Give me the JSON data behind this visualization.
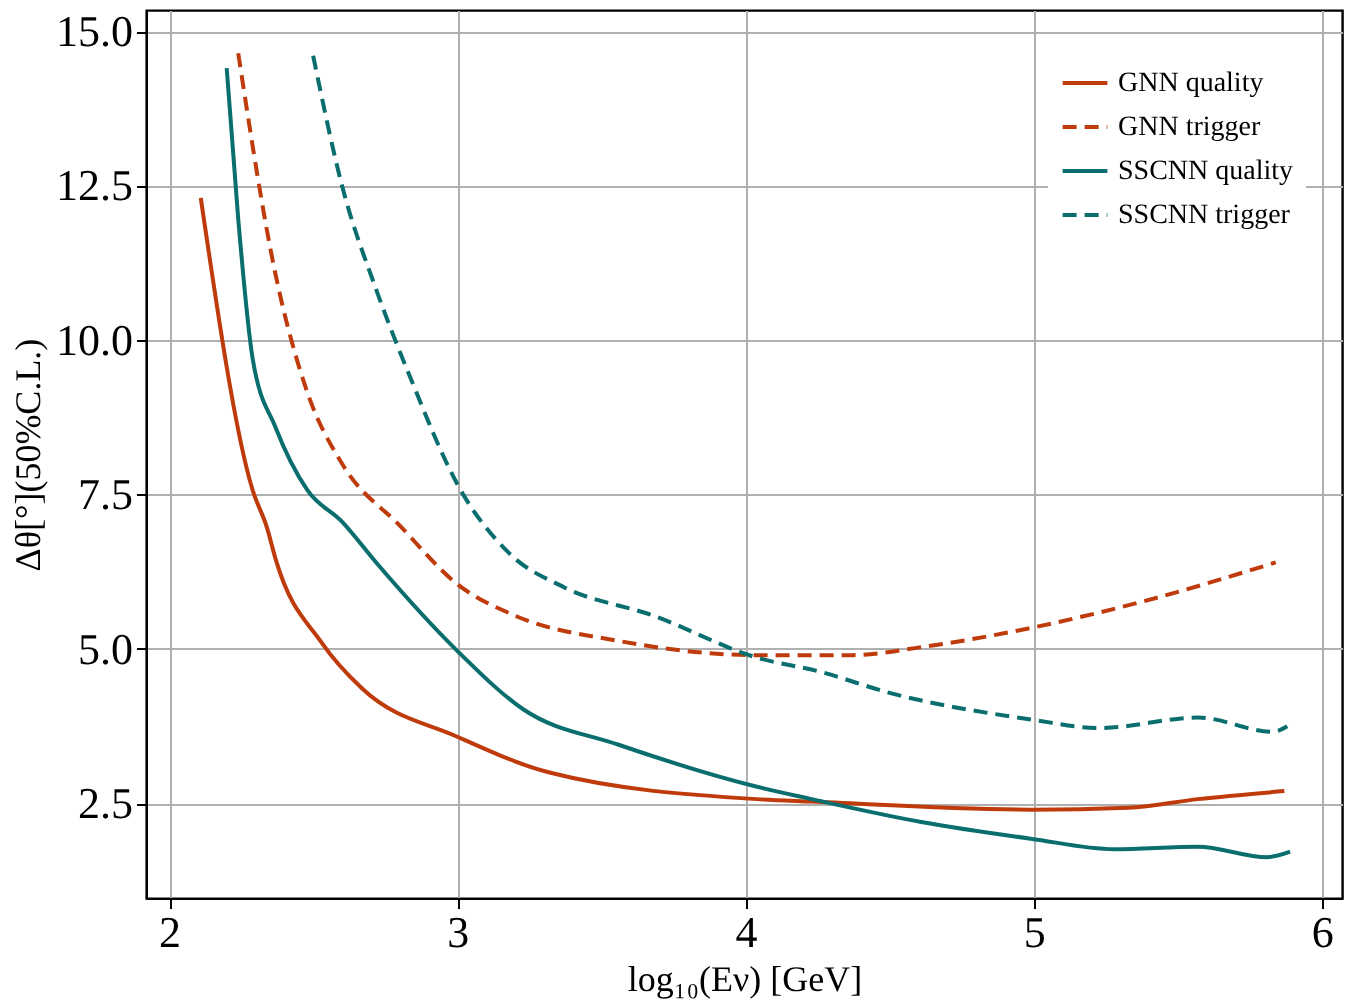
{
  "chart_data": {
    "type": "line",
    "xlabel": "log₁₀(Eν) [GeV]",
    "ylabel": "Δθ[°](50%C.L.)",
    "xlim": [
      1.92,
      6.07
    ],
    "ylim": [
      0.97,
      15.34
    ],
    "xticks": [
      2,
      3,
      4,
      5,
      6
    ],
    "yticks": [
      {
        "value": 2.5,
        "label": "2.5"
      },
      {
        "value": 5,
        "label": "5.0"
      },
      {
        "value": 7.5,
        "label": "7.5"
      },
      {
        "value": 10,
        "label": "10.0"
      },
      {
        "value": 12.5,
        "label": "12.5"
      },
      {
        "value": 15,
        "label": "15.0"
      }
    ],
    "grid": true,
    "legend": "top right",
    "marker": "none",
    "series": [
      {
        "name": "GNN quality",
        "color": "#bf3b0b",
        "line_style": "solid",
        "x": [
          2.11,
          2.29,
          2.34,
          2.37,
          2.53,
          2.67,
          3.0,
          3.32,
          4.04,
          4.23,
          4.99,
          5.33,
          5.57,
          5.87
        ],
        "values": [
          12.3,
          7.57,
          6.96,
          6.45,
          5.1,
          4.36,
          3.58,
          3.0,
          2.57,
          2.53,
          2.4,
          2.43,
          2.57,
          2.7
        ]
      },
      {
        "name": "GNN trigger",
        "color": "#bf3b0b",
        "line_style": "dashed",
        "x": [
          2.24,
          2.37,
          2.48,
          2.6,
          2.8,
          3.0,
          3.2,
          3.56,
          4.04,
          4.37,
          4.61,
          4.99,
          5.38,
          5.84
        ],
        "values": [
          14.64,
          11.05,
          9.15,
          8.0,
          7.0,
          6.05,
          5.54,
          5.13,
          4.9,
          4.9,
          5.03,
          5.34,
          5.77,
          6.4
        ]
      },
      {
        "name": "SSCNN quality",
        "color": "#0a6e6e",
        "line_style": "solid",
        "x": [
          2.2,
          2.24,
          2.29,
          2.37,
          2.48,
          2.6,
          2.72,
          3.0,
          3.23,
          3.56,
          4.04,
          4.23,
          4.61,
          4.99,
          5.28,
          5.57,
          5.81,
          5.89
        ],
        "values": [
          14.4,
          11.96,
          9.7,
          8.58,
          7.57,
          7.06,
          6.39,
          4.97,
          4.02,
          3.45,
          2.77,
          2.57,
          2.2,
          1.93,
          1.76,
          1.8,
          1.63,
          1.72
        ]
      },
      {
        "name": "SSCNN trigger",
        "color": "#0a6e6e",
        "line_style": "dashed",
        "x": [
          2.5,
          2.6,
          2.72,
          2.84,
          3.0,
          3.18,
          3.37,
          3.68,
          4.04,
          4.26,
          4.5,
          4.99,
          5.23,
          5.57,
          5.83,
          5.88
        ],
        "values": [
          14.6,
          12.5,
          10.8,
          9.36,
          7.67,
          6.55,
          6.0,
          5.54,
          4.86,
          4.63,
          4.29,
          3.86,
          3.72,
          3.89,
          3.66,
          3.75
        ]
      }
    ]
  }
}
